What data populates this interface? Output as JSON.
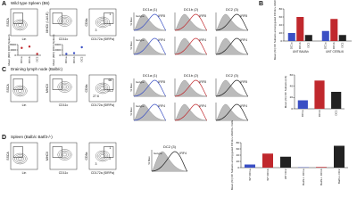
{
  "panel_a": {
    "label": "A",
    "title": "Wild type Spleen (B6)",
    "flow": [
      {
        "ylabel": "SSCA",
        "xlabel": "Lin",
        "gates": []
      },
      {
        "ylabel": "MHCII (I-A/I-E)",
        "xlabel": "CD11c",
        "gates": []
      },
      {
        "ylabel": "CD8a",
        "xlabel": "CD172a (SIRPa)",
        "gates": [
          1,
          2,
          3
        ]
      }
    ],
    "histograms": {
      "columns": [
        "DC1a (1)",
        "DC1b (2)",
        "DC2 (3)"
      ],
      "rows": [
        "IRF8",
        "IRF4"
      ],
      "ylabel": "% Max",
      "isotype": "Isotype"
    },
    "dot_plots": [
      {
        "type": "dot",
        "ylabel": "Mean (MFI) IRF8 (Spleen)",
        "categories": [
          "DC1a",
          "DC1b",
          "DC2"
        ],
        "values": [
          5500,
          6500,
          1000
        ],
        "color": "#c0282d",
        "ylim": [
          0,
          8000
        ],
        "yticks": [
          0,
          4000,
          8000
        ]
      },
      {
        "type": "dot",
        "ylabel": "Mean (MFI) IRF4 (Spleen)",
        "categories": [
          "DC1a",
          "DC1b",
          "DC2"
        ],
        "values": [
          500,
          800,
          3000
        ],
        "color": "#3a4fc4",
        "ylim": [
          0,
          4000
        ],
        "yticks": [
          0,
          2000,
          4000
        ]
      }
    ]
  },
  "panel_b": {
    "label": "B",
    "chart": {
      "type": "bar",
      "ylabel": "Mean (%) DC Subsets among gated CD11c+ MHCII+ Cells",
      "categories": [
        "UNT BALB/c",
        "UNT C57BL/6"
      ],
      "series": [
        {
          "name": "DC1a",
          "color": "#3a4fc4",
          "values": [
            20,
            25
          ]
        },
        {
          "name": "DC1b",
          "color": "#c0282d",
          "values": [
            60,
            55
          ]
        },
        {
          "name": "DC2",
          "color": "#222222",
          "values": [
            15,
            15
          ]
        }
      ],
      "ylim": [
        0,
        80
      ],
      "yticks": [
        0,
        20,
        40,
        60,
        80
      ]
    }
  },
  "panel_c": {
    "label": "C",
    "title": "Draining lymph node (Balb/c)",
    "flow": [
      {
        "ylabel": "SSCA",
        "xlabel": "Lin",
        "gates": []
      },
      {
        "ylabel": "MHCII",
        "xlabel": "CD11c",
        "gates": []
      },
      {
        "ylabel": "CD8a",
        "xlabel": "CD172a (SIRPa)",
        "gates": [
          66,
          14.2,
          27.6
        ]
      }
    ],
    "histograms": {
      "columns": [
        "DC1a (1)",
        "DC1b (2)",
        "DC2 (3)"
      ],
      "rows": [
        "IRF8",
        "IRF4"
      ],
      "ylabel": "% Max",
      "isotype": "Isotype"
    },
    "chart": {
      "type": "bar",
      "ylabel": "Mean (%) DC Subsets (LN)",
      "categories": [
        "DC1a",
        "DC1b",
        "DC2"
      ],
      "values": [
        15,
        50,
        30
      ],
      "colors": [
        "#3a4fc4",
        "#c0282d",
        "#222222"
      ],
      "ylim": [
        0,
        60
      ],
      "yticks": [
        0,
        20,
        40,
        60
      ]
    }
  },
  "panel_d": {
    "label": "D",
    "title": "Spleen (Balb/c Batf3-/-)",
    "flow": [
      {
        "ylabel": "SSCA",
        "xlabel": "Lin",
        "gates": []
      },
      {
        "ylabel": "MHCII",
        "xlabel": "CD11c",
        "gates": []
      },
      {
        "ylabel": "CD8a",
        "xlabel": "CD172a (SIRPa)",
        "gates": [
          1,
          2,
          3
        ]
      }
    ],
    "histogram": {
      "column": "DC2 (3)",
      "row": "IRF4",
      "ylabel": "% Max",
      "isotype": "Isotype"
    },
    "chart": {
      "type": "bar",
      "ylabel": "Mean (%) DC Subsets among gated CD11c+ MHCII+ Cells",
      "categories": [
        "WT DC1a",
        "WT DC1b",
        "WT DC2",
        "Batf3-/- DC1a",
        "Batf3-/- DC1b",
        "Batf3-/- DC2"
      ],
      "values": [
        10,
        45,
        35,
        1,
        2,
        70
      ],
      "colors": [
        "#3a4fc4",
        "#c0282d",
        "#222222",
        "#3a4fc4",
        "#c0282d",
        "#222222"
      ],
      "ylim": [
        0,
        80
      ],
      "yticks": [
        0,
        20,
        40,
        60,
        80
      ]
    }
  }
}
